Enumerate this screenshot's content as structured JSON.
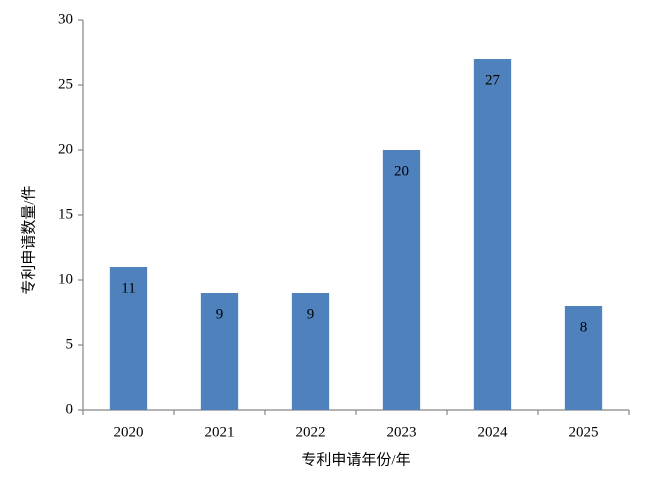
{
  "chart_data": {
    "type": "bar",
    "categories": [
      "2020",
      "2021",
      "2022",
      "2023",
      "2024",
      "2025"
    ],
    "values": [
      11,
      9,
      9,
      20,
      27,
      8
    ],
    "color": "#4f81bd",
    "ylim": [
      0,
      30
    ],
    "yticks": [
      0,
      5,
      10,
      15,
      20,
      25,
      30
    ],
    "xlabel": "专利申请年份/年",
    "ylabel": "专利申请数量/件",
    "grid": false
  }
}
